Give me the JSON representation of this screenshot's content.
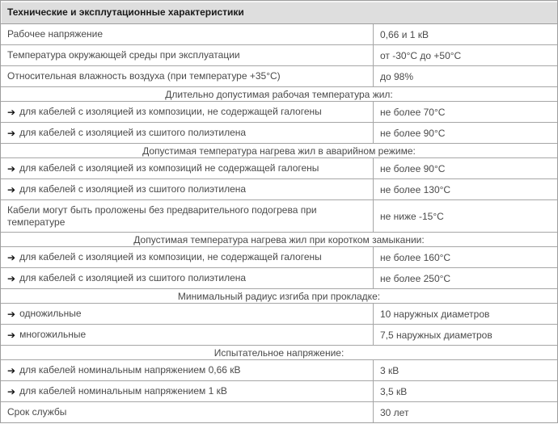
{
  "table": {
    "title": "Технические и эксплутационные характеристики",
    "arrow_icon": "➔",
    "colors": {
      "header_bg": "#dedede",
      "header_text": "#1a1a1a",
      "body_text": "#4a4a4a",
      "border": "#a6a6a6",
      "outer_border": "#9e9e9e",
      "row_bg": "#ffffff"
    },
    "rows": [
      {
        "type": "data",
        "arrow": false,
        "tall": false,
        "label": "Рабочее напряжение",
        "value": "0,66 и 1 кВ"
      },
      {
        "type": "data",
        "arrow": false,
        "tall": false,
        "label": "Температура окружающей среды при эксплуатации",
        "value": "от -30°C до +50°C"
      },
      {
        "type": "data",
        "arrow": false,
        "tall": false,
        "label": "Относительная влажность воздуха (при температуре +35°C)",
        "value": "до 98%"
      },
      {
        "type": "section",
        "label": "Длительно допустимая рабочая температура жил:"
      },
      {
        "type": "data",
        "arrow": true,
        "tall": false,
        "label": "для кабелей с изоляцией из композиции, не содержащей галогены",
        "value": "не более 70°C"
      },
      {
        "type": "data",
        "arrow": true,
        "tall": false,
        "label": "для кабелей с изоляцией из сшитого полиэтилена",
        "value": "не более 90°C"
      },
      {
        "type": "section",
        "label": "Допустимая температура нагрева жил в аварийном режиме:"
      },
      {
        "type": "data",
        "arrow": true,
        "tall": false,
        "label": "для кабелей с изоляцией из композиций не содержащей галогены",
        "value": "не более 90°C"
      },
      {
        "type": "data",
        "arrow": true,
        "tall": false,
        "label": "для кабелей с изоляцией из сшитого полиэтилена",
        "value": "не более 130°C"
      },
      {
        "type": "data",
        "arrow": false,
        "tall": true,
        "label": "Кабели могут быть проложены без предварительного подогрева при температуре",
        "value": "не ниже -15°C"
      },
      {
        "type": "section",
        "label": "Допустимая температура нагрева жил при коротком замыкании:"
      },
      {
        "type": "data",
        "arrow": true,
        "tall": false,
        "label": "для кабелей с изоляцией из композиции, не содержащей галогены",
        "value": "не более 160°C"
      },
      {
        "type": "data",
        "arrow": true,
        "tall": false,
        "label": "для кабелей с изоляцией из сшитого полиэтилена",
        "value": "не более 250°C"
      },
      {
        "type": "section",
        "label": "Минимальный радиус изгиба при прокладке:"
      },
      {
        "type": "data",
        "arrow": true,
        "tall": false,
        "label": "одножильные",
        "value": "10 наружных диаметров"
      },
      {
        "type": "data",
        "arrow": true,
        "tall": false,
        "label": "многожильные",
        "value": "7,5 наружных диаметров"
      },
      {
        "type": "section",
        "label": "Испытательное напряжение:"
      },
      {
        "type": "data",
        "arrow": true,
        "tall": false,
        "label": "для кабелей номинальным напряжением 0,66 кВ",
        "value": "3 кВ"
      },
      {
        "type": "data",
        "arrow": true,
        "tall": false,
        "label": "для кабелей номинальным напряжением 1 кВ",
        "value": "3,5 кВ"
      },
      {
        "type": "data",
        "arrow": false,
        "tall": false,
        "label": "Срок службы",
        "value": "30 лет"
      }
    ]
  }
}
